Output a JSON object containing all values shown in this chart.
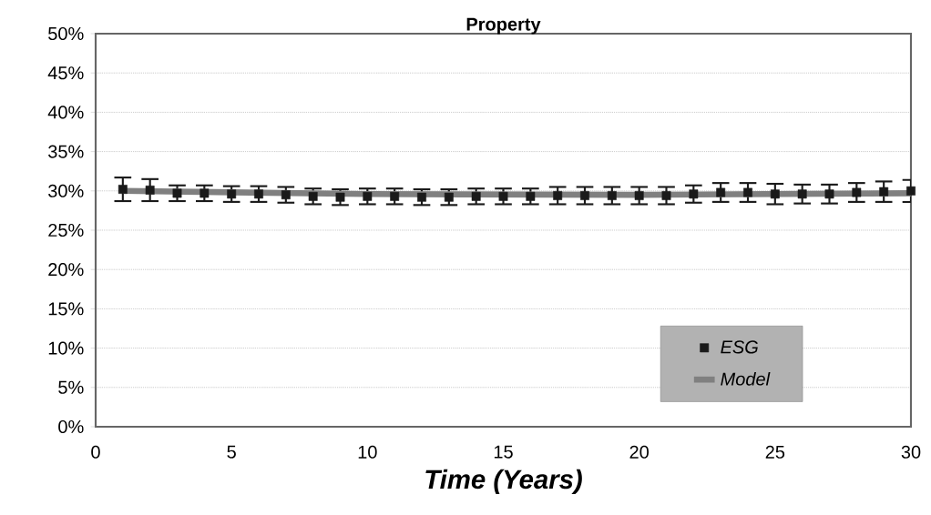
{
  "chart_data": {
    "type": "scatter",
    "title": "Property",
    "xlabel": "Time (Years)",
    "xlim": [
      0,
      30
    ],
    "xticks": [
      0,
      5,
      10,
      15,
      20,
      25,
      30
    ],
    "ylim": [
      0,
      50
    ],
    "yticks": [
      {
        "value": 0,
        "label": "0%"
      },
      {
        "value": 5,
        "label": "5%"
      },
      {
        "value": 10,
        "label": "10%"
      },
      {
        "value": 15,
        "label": "15%"
      },
      {
        "value": 20,
        "label": "20%"
      },
      {
        "value": 25,
        "label": "25%"
      },
      {
        "value": 30,
        "label": "30%"
      },
      {
        "value": 35,
        "label": "35%"
      },
      {
        "value": 40,
        "label": "40%"
      },
      {
        "value": 45,
        "label": "45%"
      },
      {
        "value": 50,
        "label": "50%"
      }
    ],
    "grid": "y",
    "legend": "bottom right",
    "series": [
      {
        "name": "ESG",
        "marker": "square",
        "color": "#1a1a1a",
        "x": [
          1,
          2,
          3,
          4,
          5,
          6,
          7,
          8,
          9,
          10,
          11,
          12,
          13,
          14,
          15,
          16,
          17,
          18,
          19,
          20,
          21,
          22,
          23,
          24,
          25,
          26,
          27,
          28,
          29,
          30
        ],
        "values": [
          30.2,
          30.1,
          29.7,
          29.7,
          29.6,
          29.6,
          29.5,
          29.3,
          29.2,
          29.3,
          29.3,
          29.2,
          29.2,
          29.3,
          29.3,
          29.3,
          29.4,
          29.4,
          29.4,
          29.4,
          29.4,
          29.6,
          29.8,
          29.8,
          29.6,
          29.6,
          29.6,
          29.8,
          29.9,
          30.0
        ],
        "errors": [
          1.5,
          1.4,
          1.0,
          1.0,
          1.0,
          1.0,
          1.0,
          1.0,
          1.0,
          1.0,
          1.0,
          1.0,
          1.0,
          1.0,
          1.0,
          1.0,
          1.1,
          1.1,
          1.1,
          1.1,
          1.1,
          1.1,
          1.2,
          1.2,
          1.3,
          1.2,
          1.2,
          1.2,
          1.3,
          1.4
        ]
      },
      {
        "name": "Model",
        "type": "line",
        "marker": "none",
        "color": "#808080",
        "x": [
          1,
          10,
          20,
          30
        ],
        "values": [
          30.0,
          29.6,
          29.5,
          29.7
        ]
      }
    ]
  }
}
